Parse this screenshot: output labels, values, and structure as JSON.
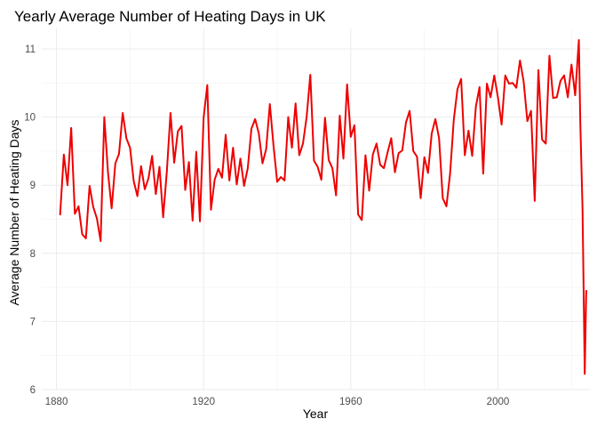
{
  "chart_data": {
    "type": "line",
    "title": "Yearly Average Number of Heating Days in UK",
    "xlabel": "Year",
    "ylabel": "Average Number of Heating Days",
    "xlim": [
      1876,
      2025
    ],
    "ylim": [
      6.0,
      11.3
    ],
    "x_ticks": [
      1880,
      1920,
      1960,
      2000
    ],
    "x_tick_labels": [
      "1880",
      "1920",
      "1960",
      "2000"
    ],
    "y_ticks": [
      6,
      7,
      8,
      9,
      10,
      11
    ],
    "y_tick_labels": [
      "6",
      "7",
      "8",
      "9",
      "10",
      "11"
    ],
    "grid": true,
    "series": [
      {
        "name": "Average Number of Heating Days",
        "color": "#ee0000",
        "x": [
          1881,
          1882,
          1883,
          1884,
          1885,
          1886,
          1887,
          1888,
          1889,
          1890,
          1891,
          1892,
          1893,
          1894,
          1895,
          1896,
          1897,
          1898,
          1899,
          1900,
          1901,
          1902,
          1903,
          1904,
          1905,
          1906,
          1907,
          1908,
          1909,
          1910,
          1911,
          1912,
          1913,
          1914,
          1915,
          1916,
          1917,
          1918,
          1919,
          1920,
          1921,
          1922,
          1923,
          1924,
          1925,
          1926,
          1927,
          1928,
          1929,
          1930,
          1931,
          1932,
          1933,
          1934,
          1935,
          1936,
          1937,
          1938,
          1939,
          1940,
          1941,
          1942,
          1943,
          1944,
          1945,
          1946,
          1947,
          1948,
          1949,
          1950,
          1951,
          1952,
          1953,
          1954,
          1955,
          1956,
          1957,
          1958,
          1959,
          1960,
          1961,
          1962,
          1963,
          1964,
          1965,
          1966,
          1967,
          1968,
          1969,
          1970,
          1971,
          1972,
          1973,
          1974,
          1975,
          1976,
          1977,
          1978,
          1979,
          1980,
          1981,
          1982,
          1983,
          1984,
          1985,
          1986,
          1987,
          1988,
          1989,
          1990,
          1991,
          1992,
          1993,
          1994,
          1995,
          1996,
          1997,
          1998,
          1999,
          2000,
          2001,
          2002,
          2003,
          2004,
          2005,
          2006,
          2007,
          2008,
          2009,
          2010,
          2011,
          2012,
          2013,
          2014,
          2015,
          2016,
          2017,
          2018,
          2019,
          2020,
          2021,
          2022,
          2022.4,
          2023,
          2023.3,
          2023.6,
          2024
        ],
        "y": [
          8.57,
          9.45,
          9.0,
          9.84,
          8.58,
          8.69,
          8.28,
          8.22,
          8.99,
          8.68,
          8.51,
          8.18,
          10.0,
          9.19,
          8.66,
          9.32,
          9.46,
          10.06,
          9.69,
          9.55,
          9.06,
          8.84,
          9.28,
          8.94,
          9.1,
          9.43,
          8.87,
          9.27,
          8.53,
          9.2,
          10.06,
          9.33,
          9.79,
          9.87,
          8.93,
          9.34,
          8.48,
          9.49,
          8.47,
          9.99,
          10.47,
          8.64,
          9.08,
          9.24,
          9.11,
          9.74,
          9.07,
          9.55,
          9.01,
          9.39,
          8.99,
          9.25,
          9.83,
          9.97,
          9.76,
          9.32,
          9.53,
          10.19,
          9.58,
          9.05,
          9.12,
          9.07,
          10.0,
          9.55,
          10.2,
          9.44,
          9.61,
          10.0,
          10.62,
          9.36,
          9.27,
          9.08,
          9.99,
          9.37,
          9.25,
          8.85,
          10.02,
          9.39,
          10.48,
          9.71,
          9.88,
          8.57,
          8.49,
          9.44,
          8.92,
          9.45,
          9.61,
          9.3,
          9.25,
          9.48,
          9.69,
          9.19,
          9.47,
          9.51,
          9.92,
          10.09,
          9.5,
          9.42,
          8.81,
          9.41,
          9.18,
          9.76,
          9.97,
          9.69,
          8.81,
          8.69,
          9.17,
          9.96,
          10.41,
          10.56,
          9.44,
          9.8,
          9.43,
          10.15,
          10.44,
          9.17,
          10.49,
          10.29,
          10.61,
          10.29,
          9.89,
          10.61,
          10.49,
          10.5,
          10.43,
          10.83,
          10.52,
          9.94,
          10.09,
          8.77,
          10.69,
          9.67,
          9.61,
          10.9,
          10.28,
          10.29,
          10.53,
          10.61,
          10.29,
          10.77,
          10.32,
          11.13,
          9.9,
          8.65,
          7.45,
          6.23,
          7.45
        ]
      }
    ]
  }
}
